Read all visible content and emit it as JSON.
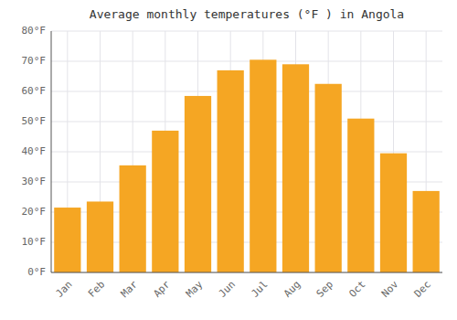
{
  "chart_data": {
    "type": "bar",
    "title": "Average monthly temperatures (°F ) in Angola",
    "categories": [
      "Jan",
      "Feb",
      "Mar",
      "Apr",
      "May",
      "Jun",
      "Jul",
      "Aug",
      "Sep",
      "Oct",
      "Nov",
      "Dec"
    ],
    "values": [
      21.5,
      23.5,
      35.5,
      47.0,
      58.5,
      67.0,
      70.5,
      69.0,
      62.5,
      51.0,
      39.5,
      27.0
    ],
    "color": "#F5A623",
    "ylim": [
      0,
      80
    ],
    "yticks": [
      {
        "value": 0,
        "label": "0°F"
      },
      {
        "value": 10,
        "label": "10°F"
      },
      {
        "value": 20,
        "label": "20°F"
      },
      {
        "value": 30,
        "label": "30°F"
      },
      {
        "value": 40,
        "label": "40°F"
      },
      {
        "value": 50,
        "label": "50°F"
      },
      {
        "value": 60,
        "label": "60°F"
      },
      {
        "value": 70,
        "label": "70°F"
      },
      {
        "value": 80,
        "label": "80°F"
      }
    ],
    "grid": true
  }
}
